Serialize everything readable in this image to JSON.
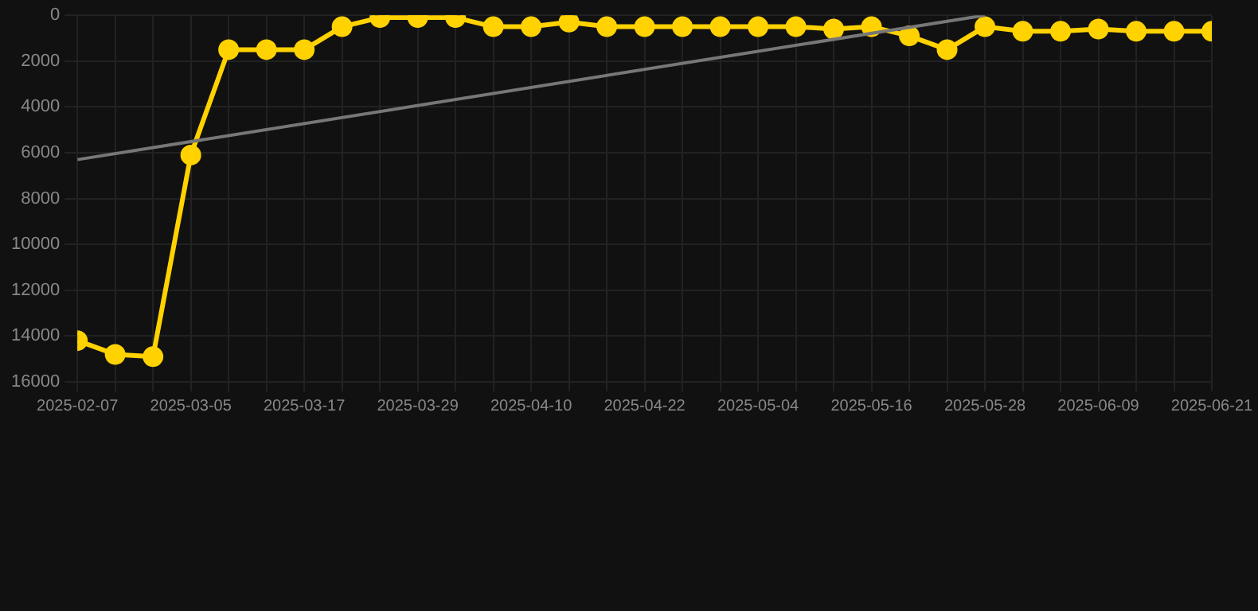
{
  "chart_data": {
    "type": "line",
    "categories": [
      "2025-02-07",
      null,
      null,
      "2025-03-05",
      null,
      null,
      "2025-03-17",
      null,
      null,
      "2025-03-29",
      null,
      null,
      "2025-04-10",
      null,
      null,
      "2025-04-22",
      null,
      null,
      "2025-05-04",
      null,
      null,
      "2025-05-16",
      null,
      null,
      "2025-05-28",
      null,
      null,
      "2025-06-09",
      null,
      null,
      "2025-06-21"
    ],
    "series": [
      {
        "color": "#ffd200",
        "marker": "circle",
        "values": [
          14200,
          14800,
          14900,
          6100,
          1500,
          1500,
          1500,
          500,
          100,
          100,
          100,
          500,
          500,
          300,
          500,
          500,
          500,
          500,
          500,
          500,
          600,
          500,
          900,
          1500,
          500,
          700,
          700,
          600,
          700,
          700,
          700
        ]
      },
      {
        "type": "line",
        "color": "#777777",
        "marker": "none",
        "values": [
          6300,
          null,
          null,
          null,
          null,
          null,
          null,
          null,
          null,
          null,
          null,
          null,
          null,
          null,
          null,
          null,
          null,
          null,
          null,
          null,
          null,
          null,
          null,
          null,
          0,
          null,
          null,
          null,
          null,
          null,
          null
        ]
      }
    ],
    "ylim": [
      16000,
      0
    ],
    "yticks": [
      0,
      2000,
      4000,
      6000,
      8000,
      10000,
      12000,
      14000,
      16000
    ],
    "grid": true,
    "legend": false
  }
}
